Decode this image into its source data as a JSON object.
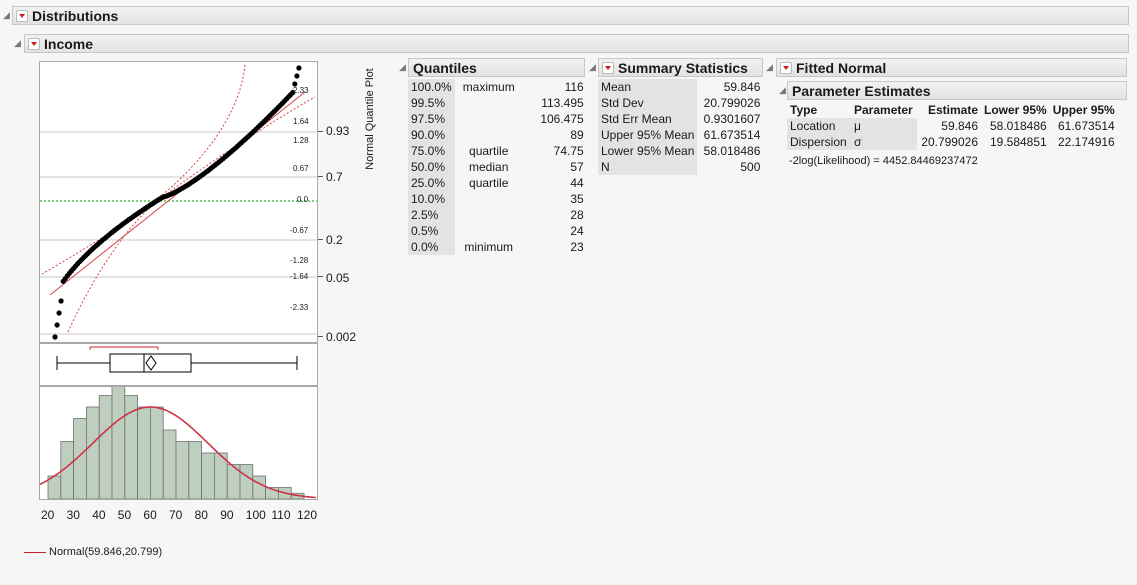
{
  "distributions": {
    "title": "Distributions"
  },
  "income": {
    "title": "Income"
  },
  "nqp": {
    "axis_title": "Normal Quantile Plot",
    "left_ticks": [
      "2.33",
      "1.64",
      "1.28",
      "0.67",
      "0.0",
      "-0.67",
      "-1.28",
      "-1.64",
      "-2.33"
    ],
    "right_ticks": [
      "0.93",
      "0.7",
      "0.2",
      "0.05",
      "0.002"
    ]
  },
  "histogram": {
    "x_ticks": [
      "20",
      "30",
      "40",
      "50",
      "60",
      "70",
      "80",
      "90",
      "100",
      "110",
      "120"
    ],
    "bars": [
      2,
      5,
      7,
      8,
      9,
      10,
      9,
      8,
      8,
      6,
      5,
      5,
      4,
      4,
      3,
      3,
      2,
      1,
      1,
      0.5
    ],
    "legend": "Normal(59.846,20.799)"
  },
  "quantiles": {
    "title": "Quantiles",
    "rows": [
      {
        "pct": "100.0%",
        "label": "maximum",
        "value": "116"
      },
      {
        "pct": "99.5%",
        "label": "",
        "value": "113.495"
      },
      {
        "pct": "97.5%",
        "label": "",
        "value": "106.475"
      },
      {
        "pct": "90.0%",
        "label": "",
        "value": "89"
      },
      {
        "pct": "75.0%",
        "label": "quartile",
        "value": "74.75"
      },
      {
        "pct": "50.0%",
        "label": "median",
        "value": "57"
      },
      {
        "pct": "25.0%",
        "label": "quartile",
        "value": "44"
      },
      {
        "pct": "10.0%",
        "label": "",
        "value": "35"
      },
      {
        "pct": "2.5%",
        "label": "",
        "value": "28"
      },
      {
        "pct": "0.5%",
        "label": "",
        "value": "24"
      },
      {
        "pct": "0.0%",
        "label": "minimum",
        "value": "23"
      }
    ]
  },
  "summary": {
    "title": "Summary Statistics",
    "rows": [
      {
        "label": "Mean",
        "value": "59.846"
      },
      {
        "label": "Std Dev",
        "value": "20.799026"
      },
      {
        "label": "Std Err Mean",
        "value": "0.9301607"
      },
      {
        "label": "Upper 95% Mean",
        "value": "61.673514"
      },
      {
        "label": "Lower 95% Mean",
        "value": "58.018486"
      },
      {
        "label": "N",
        "value": "500"
      }
    ]
  },
  "fitted": {
    "title": "Fitted Normal",
    "param_title": "Parameter Estimates",
    "headers": [
      "Type",
      "Parameter",
      "Estimate",
      "Lower 95%",
      "Upper 95%"
    ],
    "rows": [
      {
        "type": "Location",
        "param": "μ",
        "estimate": "59.846",
        "lower": "58.018486",
        "upper": "61.673514"
      },
      {
        "type": "Dispersion",
        "param": "σ",
        "estimate": "20.799026",
        "lower": "19.584851",
        "upper": "22.174916"
      }
    ],
    "likelihood": "-2log(Likelihood) = 4452.84469237472"
  }
}
